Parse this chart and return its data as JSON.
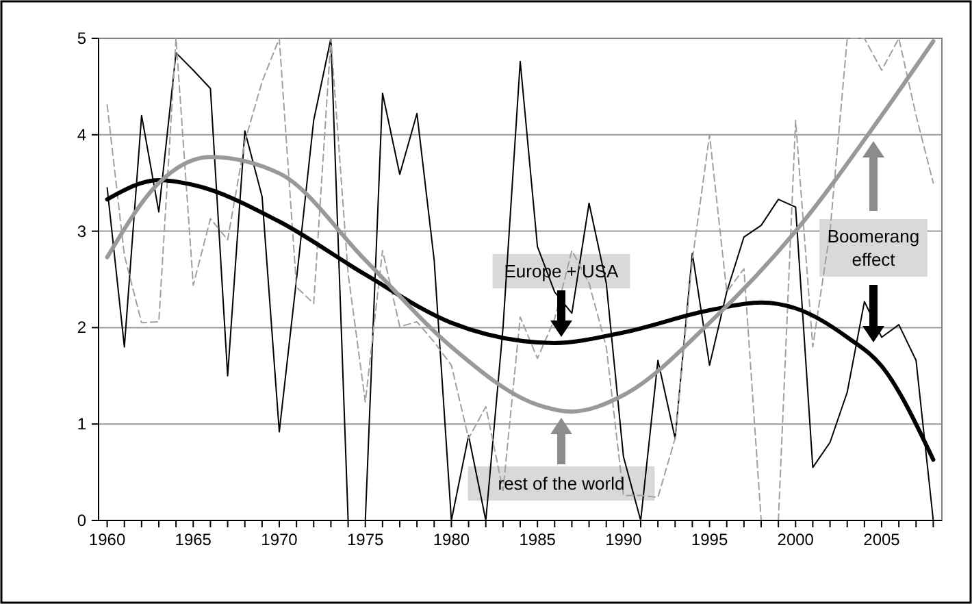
{
  "chart_data": {
    "type": "line",
    "xlim": [
      1959.5,
      2008.5
    ],
    "ylim": [
      0,
      5
    ],
    "yticks": [
      0,
      1,
      2,
      3,
      4,
      5
    ],
    "grid": "y",
    "xticks": [
      1960,
      {
        "value": 1961,
        "label": null
      },
      {
        "value": 1962,
        "label": null
      },
      {
        "value": 1963,
        "label": null
      },
      {
        "value": 1964,
        "label": null
      },
      1965,
      {
        "value": 1966,
        "label": null
      },
      {
        "value": 1967,
        "label": null
      },
      {
        "value": 1968,
        "label": null
      },
      {
        "value": 1969,
        "label": null
      },
      1970,
      {
        "value": 1971,
        "label": null
      },
      {
        "value": 1972,
        "label": null
      },
      {
        "value": 1973,
        "label": null
      },
      {
        "value": 1974,
        "label": null
      },
      1975,
      {
        "value": 1976,
        "label": null
      },
      {
        "value": 1977,
        "label": null
      },
      {
        "value": 1978,
        "label": null
      },
      {
        "value": 1979,
        "label": null
      },
      1980,
      {
        "value": 1981,
        "label": null
      },
      {
        "value": 1982,
        "label": null
      },
      {
        "value": 1983,
        "label": null
      },
      {
        "value": 1984,
        "label": null
      },
      1985,
      {
        "value": 1986,
        "label": null
      },
      {
        "value": 1987,
        "label": null
      },
      {
        "value": 1988,
        "label": null
      },
      {
        "value": 1989,
        "label": null
      },
      1990,
      {
        "value": 1991,
        "label": null
      },
      {
        "value": 1992,
        "label": null
      },
      {
        "value": 1993,
        "label": null
      },
      {
        "value": 1994,
        "label": null
      },
      1995,
      {
        "value": 1996,
        "label": null
      },
      {
        "value": 1997,
        "label": null
      },
      {
        "value": 1998,
        "label": null
      },
      {
        "value": 1999,
        "label": null
      },
      2000,
      {
        "value": 2001,
        "label": null
      },
      {
        "value": 2002,
        "label": null
      },
      {
        "value": 2003,
        "label": null
      },
      {
        "value": 2004,
        "label": null
      },
      2005,
      {
        "value": 2006,
        "label": null
      },
      {
        "value": 2007,
        "label": null
      },
      {
        "value": 2008,
        "label": null
      }
    ],
    "x": [
      1960,
      1961,
      1962,
      1963,
      1964,
      1965,
      1966,
      1967,
      1968,
      1969,
      1970,
      1971,
      1972,
      1973,
      1974,
      1975,
      1976,
      1977,
      1978,
      1979,
      1980,
      1981,
      1982,
      1983,
      1984,
      1985,
      1986,
      1987,
      1988,
      1989,
      1990,
      1991,
      1992,
      1993,
      1994,
      1995,
      1996,
      1997,
      1998,
      1999,
      2000,
      2001,
      2002,
      2003,
      2004,
      2005,
      2006,
      2007,
      2008
    ],
    "series": [
      {
        "color": "#000000",
        "line_style": "solid",
        "values": [
          3.45,
          1.8,
          4.2,
          3.2,
          4.85,
          4.67,
          4.48,
          1.5,
          4.04,
          3.36,
          0.92,
          2.5,
          4.15,
          5,
          0,
          0,
          4.43,
          3.59,
          4.22,
          2.7,
          0,
          0.88,
          0,
          2.0,
          4.76,
          2.84,
          2.37,
          2.15,
          3.29,
          2.46,
          0.66,
          0,
          1.66,
          0.85,
          2.77,
          1.61,
          2.37,
          2.94,
          3.06,
          3.33,
          3.25,
          0.55,
          0.81,
          1.33,
          2.27,
          1.9,
          2.03,
          1.66,
          0
        ]
      },
      {
        "color": "#a0a0a0",
        "line_style": "dashed",
        "values": [
          4.31,
          2.75,
          2.05,
          2.06,
          5,
          2.44,
          3.13,
          2.91,
          3.93,
          4.55,
          5,
          2.42,
          2.25,
          5,
          2.56,
          1.23,
          2.8,
          2.01,
          2.06,
          1.85,
          1.61,
          0.85,
          1.18,
          0.31,
          2.11,
          1.68,
          2.09,
          2.8,
          2.46,
          1.8,
          0.26,
          0.26,
          0.24,
          0.85,
          2.7,
          4.0,
          2.37,
          2.61,
          0,
          0,
          4.15,
          1.8,
          3.0,
          5,
          5,
          4.67,
          5,
          4.2,
          3.5
        ]
      },
      {
        "type": "line",
        "color": "#000000",
        "line_style": "solid",
        "x": [
          1960,
          1963,
          1965,
          1970,
          1975,
          1980,
          1986,
          1990,
          1995,
          1998,
          2000,
          2003,
          2005,
          2008
        ],
        "values": [
          3.33,
          3.53,
          3.48,
          3.1,
          2.55,
          2.05,
          1.84,
          1.95,
          2.18,
          2.26,
          2.2,
          1.9,
          1.6,
          0.63
        ]
      },
      {
        "type": "line",
        "color": "#999999",
        "line_style": "solid",
        "x": [
          1960,
          1963,
          1966,
          1970,
          1975,
          1980,
          1985,
          1987,
          1990,
          1995,
          2000,
          2005,
          2008
        ],
        "values": [
          2.73,
          3.5,
          3.77,
          3.6,
          2.7,
          1.8,
          1.2,
          1.13,
          1.3,
          2.05,
          3.0,
          4.2,
          4.97
        ]
      }
    ],
    "annotations": [
      "Europe + USA",
      "rest of the world",
      "Boomerang effect"
    ]
  }
}
